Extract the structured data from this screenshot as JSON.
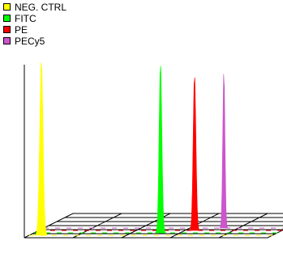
{
  "chart_data": {
    "type": "area",
    "title": "",
    "xlabel": "",
    "ylabel": "",
    "grid": true,
    "legend_position": "top-left",
    "x_domain": [
      0,
      1000
    ],
    "y_domain": [
      0,
      1
    ],
    "series": [
      {
        "name": "NEG. CTRL",
        "color": "#ffff00",
        "peak_x": 50,
        "peak_height": 1.0,
        "spread": 22
      },
      {
        "name": "FITC",
        "color": "#00ff00",
        "peak_x": 520,
        "peak_height": 0.98,
        "spread": 18
      },
      {
        "name": "PE",
        "color": "#ff0000",
        "peak_x": 640,
        "peak_height": 0.9,
        "spread": 18
      },
      {
        "name": "PECy5",
        "color": "#cc55cc",
        "peak_x": 740,
        "peak_height": 0.95,
        "spread": 14
      }
    ]
  }
}
